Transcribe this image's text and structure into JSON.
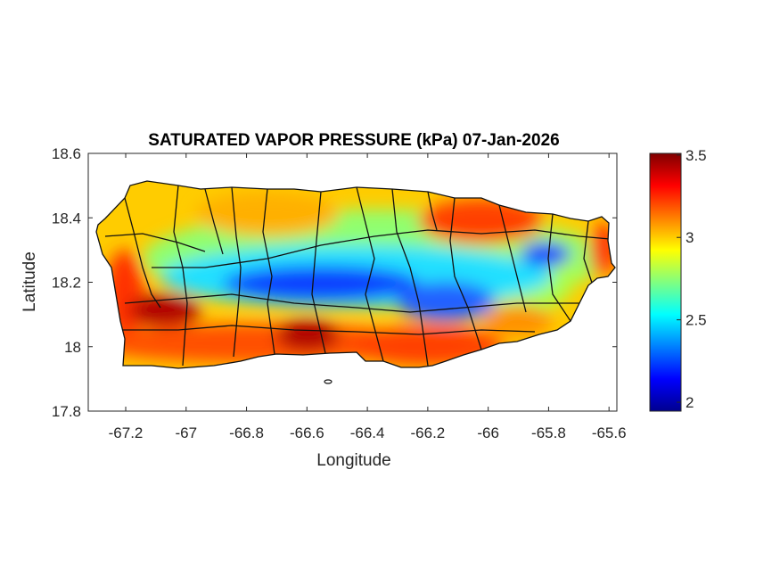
{
  "figure": {
    "title": "SATURATED VAPOR PRESSURE (kPa) 07-Jan-2026",
    "xlabel": "Longitude",
    "ylabel": "Latitude",
    "xlim": [
      -67.324,
      -65.574
    ],
    "ylim": [
      17.8,
      18.6
    ],
    "xticks": [
      -67.2,
      -67,
      -66.8,
      -66.6,
      -66.4,
      -66.2,
      -66,
      -65.8,
      -65.6
    ],
    "xtick_labels": [
      "-67.2",
      "-67",
      "-66.8",
      "-66.6",
      "-66.4",
      "-66.2",
      "-66",
      "-65.8",
      "-65.6"
    ],
    "yticks": [
      17.8,
      18,
      18.2,
      18.4,
      18.6
    ],
    "ytick_labels": [
      "17.8",
      "18",
      "18.2",
      "18.4",
      "18.6"
    ],
    "colormap": "jet",
    "colorbar": {
      "clim": [
        1.946,
        3.51
      ],
      "ticks": [
        2,
        2.5,
        3,
        3.5
      ],
      "tick_labels": [
        "2",
        "2.5",
        "3",
        "3.5"
      ]
    }
  }
}
